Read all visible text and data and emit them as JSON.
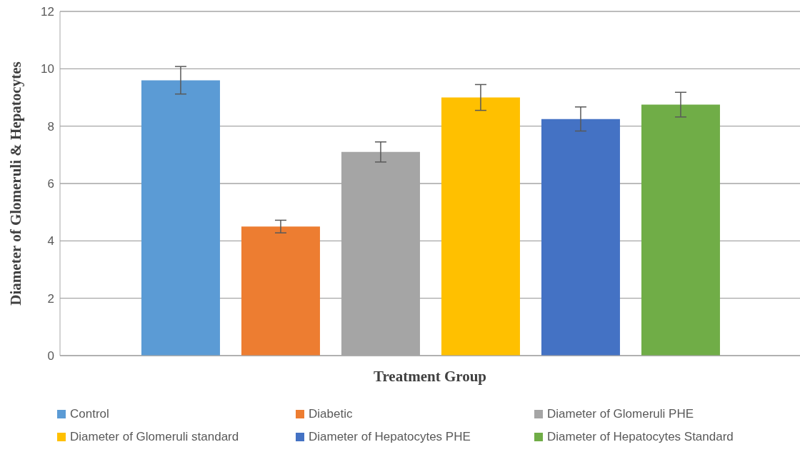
{
  "chart_data": {
    "type": "bar",
    "xlabel": "Treatment Group",
    "ylabel": "Diameter of Glomeruli & Hepatocytes",
    "categories": [
      null
    ],
    "series": [
      {
        "name": "Control",
        "color": "#5b9bd5",
        "values": [
          9.6
        ],
        "errors": [
          0.48
        ]
      },
      {
        "name": "Diabetic",
        "color": "#ed7d31",
        "values": [
          4.5
        ],
        "errors": [
          0.22
        ]
      },
      {
        "name": "Diameter of Glomeruli PHE",
        "color": "#a5a5a5",
        "values": [
          7.1
        ],
        "errors": [
          0.35
        ]
      },
      {
        "name": "Diameter of Glomeruli standard",
        "color": "#ffc000",
        "values": [
          9.0
        ],
        "errors": [
          0.45
        ]
      },
      {
        "name": "Diameter of Hepatocytes PHE",
        "color": "#4472c4",
        "values": [
          8.25
        ],
        "errors": [
          0.42
        ]
      },
      {
        "name": "Diameter of Hepatocytes Standard",
        "color": "#70ad47",
        "values": [
          8.75
        ],
        "errors": [
          0.43
        ]
      }
    ],
    "ylim": [
      0,
      12
    ],
    "yticks": [
      0,
      2,
      4,
      6,
      8,
      10,
      12
    ],
    "grid": "y",
    "legend": "bottom"
  }
}
